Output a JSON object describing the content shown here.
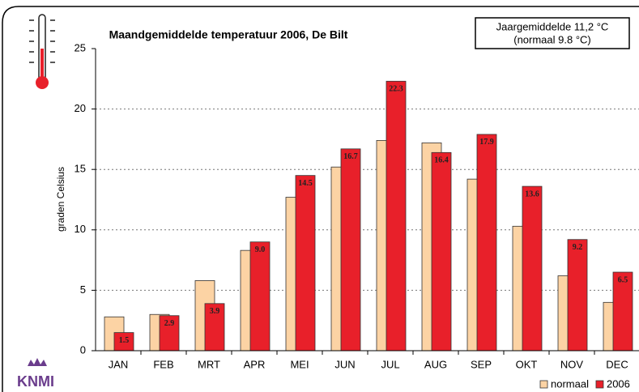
{
  "chart_data": {
    "type": "bar",
    "title": "Maandgemiddelde temperatuur 2006, De Bilt",
    "annotation": [
      "Jaargemiddelde 11,2 °C",
      "(normaal 9.8 °C)"
    ],
    "ylabel": "graden Celsius",
    "logo": "KNMI",
    "categories": [
      "JAN",
      "FEB",
      "MRT",
      "APR",
      "MEI",
      "JUN",
      "JUL",
      "AUG",
      "SEP",
      "OKT",
      "NOV",
      "DEC"
    ],
    "series": [
      {
        "name": "normaal",
        "color": "#fcd3a4",
        "values": [
          2.8,
          3.0,
          5.8,
          8.3,
          12.7,
          15.2,
          17.4,
          17.2,
          14.2,
          10.3,
          6.2,
          4.0
        ]
      },
      {
        "name": "2006",
        "color": "#e8202a",
        "values": [
          1.5,
          2.9,
          3.9,
          9.0,
          14.5,
          16.7,
          22.3,
          16.4,
          17.9,
          13.6,
          9.2,
          6.5
        ],
        "value_labels": [
          "1.5",
          "2.9",
          "3.9",
          "9.0",
          "14.5",
          "16.7",
          "22.3",
          "16.4",
          "17.9",
          "13.6",
          "9.2",
          "6.5"
        ]
      }
    ],
    "ylim": [
      0,
      25
    ],
    "yticks": [
      0,
      5,
      10,
      15,
      20,
      25
    ],
    "grid": true,
    "legend": "lower right"
  }
}
